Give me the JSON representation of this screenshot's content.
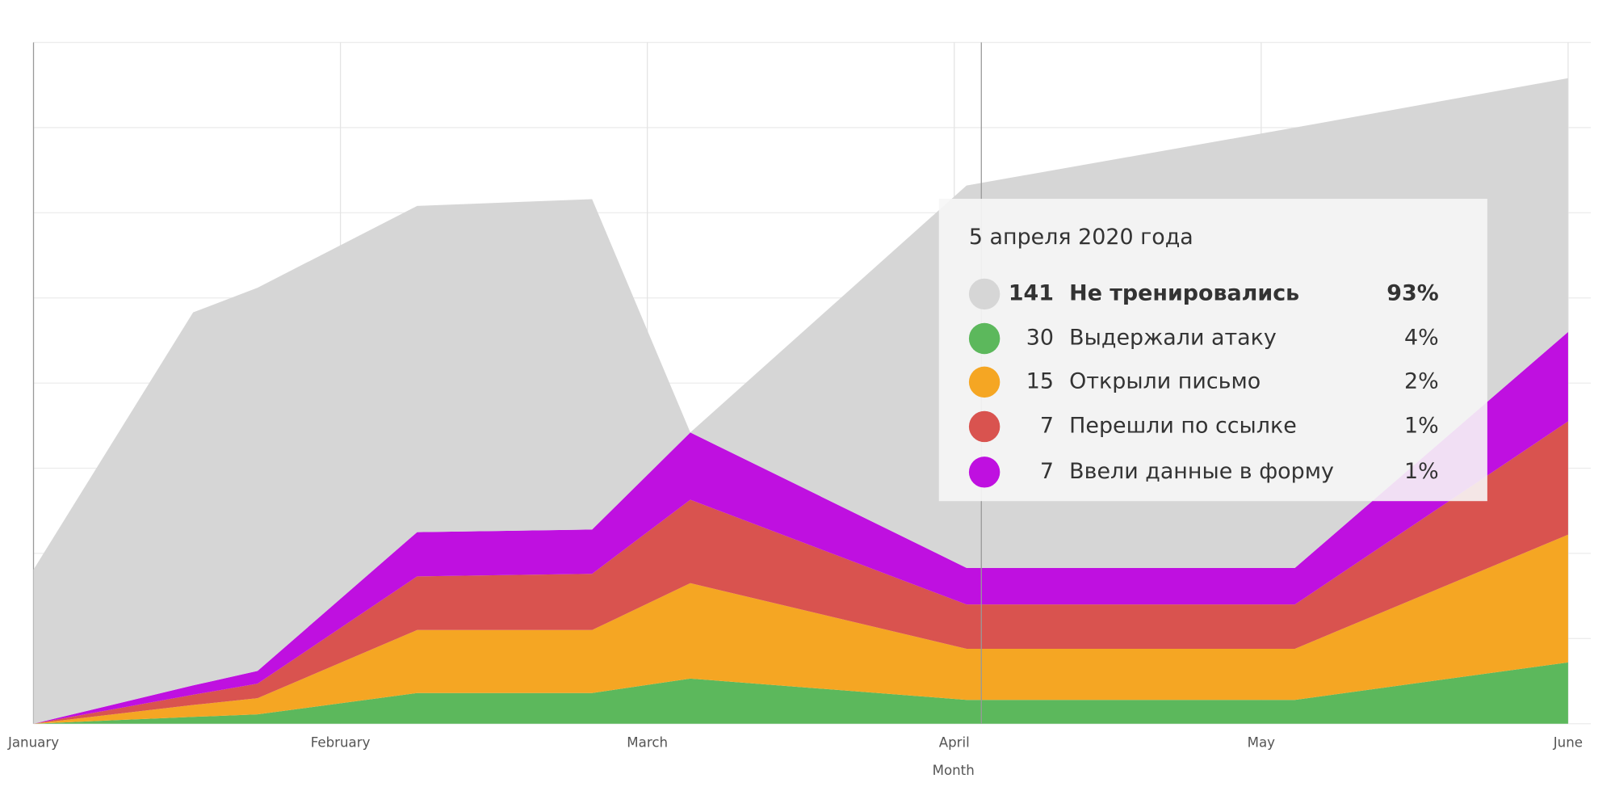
{
  "chart_data": {
    "type": "stacked_area",
    "x_label": "Month",
    "x": [
      0,
      0.52,
      0.73,
      1.25,
      1.82,
      2.14,
      3.04,
      4.11,
      5.0
    ],
    "xlim": [
      0,
      5.074
    ],
    "xticks": [
      {
        "value": 0,
        "label": "January"
      },
      {
        "value": 1,
        "label": "February"
      },
      {
        "value": 2,
        "label": "March"
      },
      {
        "value": 3,
        "label": "April"
      },
      {
        "value": 4,
        "label": "May"
      },
      {
        "value": 5,
        "label": "June"
      }
    ],
    "ylim": [
      0,
      80
    ],
    "yticks": [
      0,
      10,
      20,
      30,
      40,
      50,
      60,
      70,
      80
    ],
    "grid": true,
    "series": [
      {
        "name": "Выдержали атаку",
        "color": "#5cb85c",
        "values": [
          0,
          0.8,
          1.1,
          3.6,
          3.6,
          5.3,
          2.8,
          2.8,
          7.2
        ]
      },
      {
        "name": "Открыли письмо",
        "color": "#f5a623",
        "values": [
          0,
          1.4,
          1.9,
          7.4,
          7.4,
          11.2,
          6.0,
          6.0,
          15.0
        ]
      },
      {
        "name": "Перешли по ссылке",
        "color": "#d9534f",
        "values": [
          0,
          1.2,
          1.7,
          6.3,
          6.6,
          9.8,
          5.2,
          5.2,
          13.3
        ]
      },
      {
        "name": "Ввели данные в форму",
        "color": "#bf10e0",
        "values": [
          0,
          1.1,
          1.5,
          5.2,
          5.2,
          7.9,
          4.3,
          4.3,
          10.5
        ]
      },
      {
        "name": "Не тренировались",
        "color": "#d6d6d6",
        "values": [
          18.1,
          43.8,
          45.0,
          38.3,
          38.8,
          0,
          44.9,
          51.7,
          29.8
        ]
      }
    ]
  },
  "tooltip": {
    "title": "5 апреля 2020 года",
    "rows": [
      {
        "count": 141,
        "label": "Не тренировались",
        "percent": "93%",
        "color": "#d6d6d6"
      },
      {
        "count": 30,
        "label": "Выдержали атаку",
        "percent": "4%",
        "color": "#5cb85c"
      },
      {
        "count": 15,
        "label": "Открыли письмо",
        "percent": "2%",
        "color": "#f5a623"
      },
      {
        "count": 7,
        "label": "Перешли по ссылке",
        "percent": "1%",
        "color": "#d9534f"
      },
      {
        "count": 7,
        "label": "Ввели данные в форму",
        "percent": "1%",
        "color": "#bf10e0"
      }
    ]
  }
}
